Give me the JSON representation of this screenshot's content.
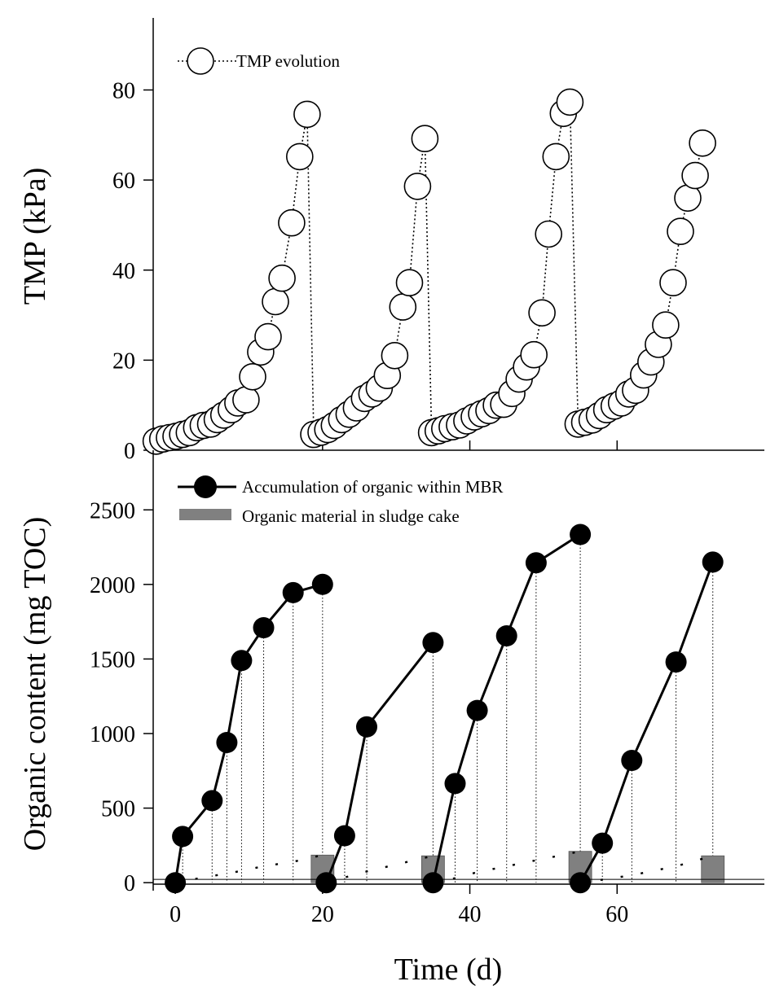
{
  "chart_data": [
    {
      "type": "line",
      "ylabel": "TMP (kPa)",
      "ylim": [
        0,
        96
      ],
      "yticks": [
        0,
        20,
        40,
        60,
        80
      ],
      "xlim": [
        -3,
        80
      ],
      "grid": false,
      "legend_placement": "top-left",
      "series": [
        {
          "name": "TMP evolution",
          "marker": "open-circle",
          "line": "dotted",
          "points": [
            [
              -2.6,
              2.0
            ],
            [
              -1.7,
              2.5
            ],
            [
              -0.8,
              2.8
            ],
            [
              0.1,
              3.1
            ],
            [
              1.0,
              3.5
            ],
            [
              1.9,
              3.9
            ],
            [
              2.9,
              5.0
            ],
            [
              3.8,
              5.5
            ],
            [
              4.8,
              5.8
            ],
            [
              5.7,
              6.8
            ],
            [
              6.6,
              7.8
            ],
            [
              7.6,
              9.0
            ],
            [
              8.5,
              10.5
            ],
            [
              9.6,
              11.2
            ],
            [
              10.5,
              16.3
            ],
            [
              11.6,
              21.8
            ],
            [
              12.6,
              25.2
            ],
            [
              13.6,
              33.0
            ],
            [
              14.5,
              38.2
            ],
            [
              15.8,
              50.5
            ],
            [
              16.9,
              65.2
            ],
            [
              17.9,
              74.6
            ],
            [
              18.8,
              3.5
            ],
            [
              19.8,
              4.0
            ],
            [
              20.7,
              4.6
            ],
            [
              21.6,
              5.5
            ],
            [
              22.6,
              6.8
            ],
            [
              23.6,
              8.0
            ],
            [
              24.6,
              9.4
            ],
            [
              25.7,
              11.5
            ],
            [
              26.7,
              12.5
            ],
            [
              27.7,
              13.8
            ],
            [
              28.8,
              16.6
            ],
            [
              29.8,
              21.0
            ],
            [
              30.9,
              31.8
            ],
            [
              31.8,
              37.2
            ],
            [
              32.9,
              58.6
            ],
            [
              33.9,
              69.2
            ],
            [
              34.8,
              3.9
            ],
            [
              35.7,
              4.3
            ],
            [
              36.6,
              4.8
            ],
            [
              37.6,
              5.2
            ],
            [
              38.6,
              5.6
            ],
            [
              39.6,
              6.5
            ],
            [
              40.6,
              7.4
            ],
            [
              41.6,
              8.1
            ],
            [
              42.6,
              8.8
            ],
            [
              43.6,
              10.0
            ],
            [
              44.6,
              10.2
            ],
            [
              45.7,
              12.6
            ],
            [
              46.7,
              15.8
            ],
            [
              47.7,
              18.5
            ],
            [
              48.7,
              21.2
            ],
            [
              49.8,
              30.5
            ],
            [
              50.7,
              48.0
            ],
            [
              51.7,
              65.2
            ],
            [
              52.7,
              74.8
            ],
            [
              53.6,
              77.3
            ],
            [
              54.7,
              5.8
            ],
            [
              55.6,
              6.2
            ],
            [
              56.6,
              6.7
            ],
            [
              57.6,
              7.7
            ],
            [
              58.6,
              9.0
            ],
            [
              59.6,
              9.8
            ],
            [
              60.6,
              10.5
            ],
            [
              61.6,
              12.5
            ],
            [
              62.5,
              13.3
            ],
            [
              63.6,
              16.7
            ],
            [
              64.6,
              19.6
            ],
            [
              65.6,
              23.5
            ],
            [
              66.6,
              27.8
            ],
            [
              67.6,
              37.2
            ],
            [
              68.6,
              48.6
            ],
            [
              69.6,
              56.0
            ],
            [
              70.6,
              61.0
            ],
            [
              71.6,
              68.2
            ]
          ]
        }
      ]
    },
    {
      "type": "line",
      "xlabel": "Time (d)",
      "ylabel": "Organic content (mg TOC)",
      "xlim": [
        -3,
        80
      ],
      "xticks": [
        0,
        20,
        40,
        60
      ],
      "ylim": [
        -10,
        2900
      ],
      "yticks": [
        0,
        500,
        1000,
        1500,
        2000,
        2500
      ],
      "grid": false,
      "legend_placement": "top-left",
      "series": [
        {
          "name": "Accumulation of organic within MBR",
          "marker": "filled-circle",
          "line": "solid",
          "segments": [
            [
              [
                0,
                0
              ],
              [
                1,
                310
              ],
              [
                5,
                550
              ],
              [
                7,
                940
              ],
              [
                9,
                1490
              ],
              [
                12,
                1710
              ],
              [
                16,
                1945
              ],
              [
                20,
                2000
              ]
            ],
            [
              [
                20.5,
                0
              ],
              [
                23,
                315
              ],
              [
                26,
                1045
              ],
              [
                35,
                1610
              ]
            ],
            [
              [
                35,
                0
              ],
              [
                38,
                665
              ],
              [
                41,
                1155
              ],
              [
                45,
                1655
              ],
              [
                49,
                2145
              ],
              [
                55,
                2335
              ]
            ],
            [
              [
                55,
                0
              ],
              [
                58,
                265
              ],
              [
                62,
                820
              ],
              [
                68,
                1480
              ],
              [
                73,
                2150
              ]
            ]
          ]
        },
        {
          "name": "Organic material in sludge cake",
          "type": "bar",
          "color": "#808080",
          "x": [
            20,
            35,
            55,
            73
          ],
          "values": [
            185,
            180,
            210,
            180
          ]
        }
      ],
      "sludge_trend": [
        [
          [
            0,
            0
          ],
          [
            1,
            10
          ],
          [
            5,
            45
          ],
          [
            7,
            60
          ],
          [
            9,
            80
          ],
          [
            12,
            110
          ],
          [
            16,
            140
          ],
          [
            20,
            185
          ]
        ],
        [
          [
            20.5,
            0
          ],
          [
            23,
            35
          ],
          [
            26,
            75
          ],
          [
            35,
            180
          ]
        ],
        [
          [
            35,
            0
          ],
          [
            38,
            30
          ],
          [
            41,
            70
          ],
          [
            45,
            110
          ],
          [
            49,
            150
          ],
          [
            55,
            210
          ]
        ],
        [
          [
            55,
            0
          ],
          [
            58,
            20
          ],
          [
            62,
            50
          ],
          [
            68,
            110
          ],
          [
            73,
            180
          ]
        ]
      ],
      "drop_lines_x": [
        1,
        5,
        7,
        9,
        12,
        16,
        20,
        23,
        26,
        35,
        38,
        41,
        45,
        49,
        55,
        58,
        62,
        68,
        73
      ]
    }
  ],
  "colors": {
    "axis": "#000000",
    "marker_open_fill": "#ffffff",
    "marker_filled": "#000000",
    "bar": "#808080"
  }
}
